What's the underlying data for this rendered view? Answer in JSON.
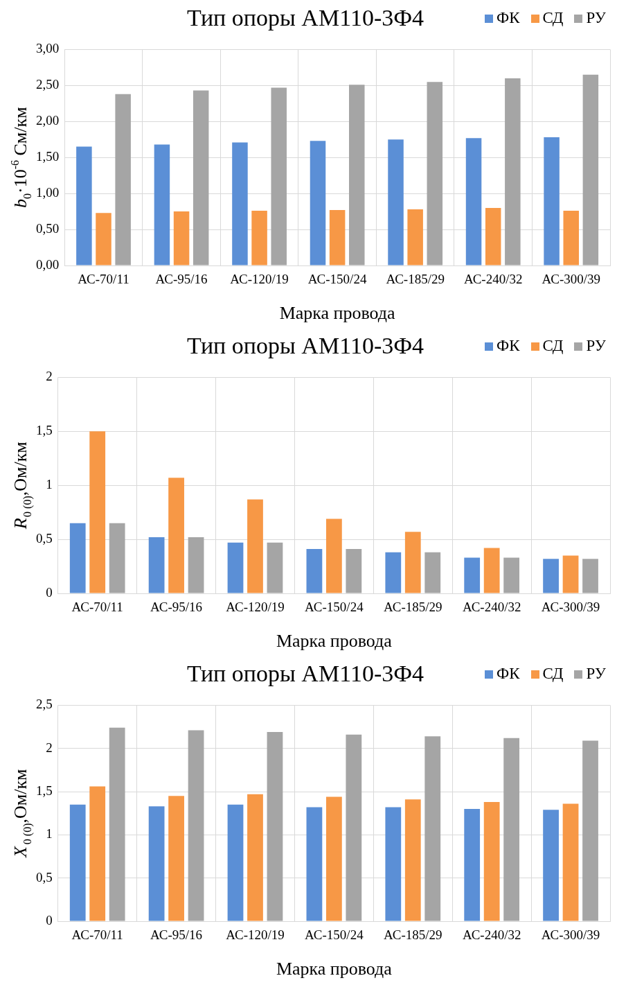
{
  "chart_data": [
    {
      "type": "bar",
      "title": "Тип опоры АМ110-3Ф4",
      "xlabel": "Марка провода",
      "ylabel": "b$_{0}$·10$^{-6}$ См/км",
      "categories": [
        "АС-70/11",
        "АС-95/16",
        "АС-120/19",
        "АС-150/24",
        "АС-185/29",
        "АС-240/32",
        "АС-300/39"
      ],
      "series": [
        {
          "name": "ФК",
          "color": "#5b8fd6",
          "values": [
            1.65,
            1.68,
            1.71,
            1.73,
            1.75,
            1.77,
            1.78
          ]
        },
        {
          "name": "СД",
          "color": "#f79846",
          "values": [
            0.73,
            0.75,
            0.76,
            0.77,
            0.78,
            0.8,
            0.76
          ]
        },
        {
          "name": "РУ",
          "color": "#a5a5a5",
          "values": [
            2.38,
            2.43,
            2.47,
            2.51,
            2.55,
            2.6,
            2.65
          ]
        }
      ],
      "ylim": [
        0,
        3
      ],
      "yticks": [
        {
          "value": 0,
          "label": "0,00"
        },
        {
          "value": 0.5,
          "label": "0,50"
        },
        {
          "value": 1,
          "label": "1,00"
        },
        {
          "value": 1.5,
          "label": "1,50"
        },
        {
          "value": 2,
          "label": "2,00"
        },
        {
          "value": 2.5,
          "label": "2,50"
        },
        {
          "value": 3,
          "label": "3,00"
        }
      ],
      "grid": true,
      "legend": "top right"
    },
    {
      "type": "bar",
      "title": "Тип опоры АМ110-3Ф4",
      "xlabel": "Марка провода",
      "ylabel": "R$_{0 (0)}$,Ом/км",
      "categories": [
        "АС-70/11",
        "АС-95/16",
        "АС-120/19",
        "АС-150/24",
        "АС-185/29",
        "АС-240/32",
        "АС-300/39"
      ],
      "series": [
        {
          "name": "ФК",
          "color": "#5b8fd6",
          "values": [
            0.65,
            0.52,
            0.47,
            0.41,
            0.38,
            0.33,
            0.32
          ]
        },
        {
          "name": "СД",
          "color": "#f79846",
          "values": [
            1.5,
            1.07,
            0.87,
            0.69,
            0.57,
            0.42,
            0.35
          ]
        },
        {
          "name": "РУ",
          "color": "#a5a5a5",
          "values": [
            0.65,
            0.52,
            0.47,
            0.41,
            0.38,
            0.33,
            0.32
          ]
        }
      ],
      "ylim": [
        0,
        2
      ],
      "yticks": [
        0,
        {
          "value": 0.5,
          "label": "0,5"
        },
        1,
        {
          "value": 1.5,
          "label": "1,5"
        },
        2
      ],
      "grid": true,
      "legend": "top right"
    },
    {
      "type": "bar",
      "title": "Тип опоры АМ110-3Ф4",
      "xlabel": "Марка провода",
      "ylabel": "X$_{0 (0)}$,Ом/км",
      "categories": [
        "АС-70/11",
        "АС-95/16",
        "АС-120/19",
        "АС-150/24",
        "АС-185/29",
        "АС-240/32",
        "АС-300/39"
      ],
      "series": [
        {
          "name": "ФК",
          "color": "#5b8fd6",
          "values": [
            1.35,
            1.33,
            1.35,
            1.32,
            1.32,
            1.3,
            1.29
          ]
        },
        {
          "name": "СД",
          "color": "#f79846",
          "values": [
            1.56,
            1.45,
            1.47,
            1.44,
            1.41,
            1.38,
            1.36
          ]
        },
        {
          "name": "РУ",
          "color": "#a5a5a5",
          "values": [
            2.24,
            2.21,
            2.19,
            2.16,
            2.14,
            2.12,
            2.09
          ]
        }
      ],
      "ylim": [
        0,
        2.5
      ],
      "yticks": [
        0,
        {
          "value": 0.5,
          "label": "0,5"
        },
        1,
        {
          "value": 1.5,
          "label": "1,5"
        },
        2,
        {
          "value": 2.5,
          "label": "2,5"
        }
      ],
      "grid": true,
      "legend": "top right"
    }
  ]
}
